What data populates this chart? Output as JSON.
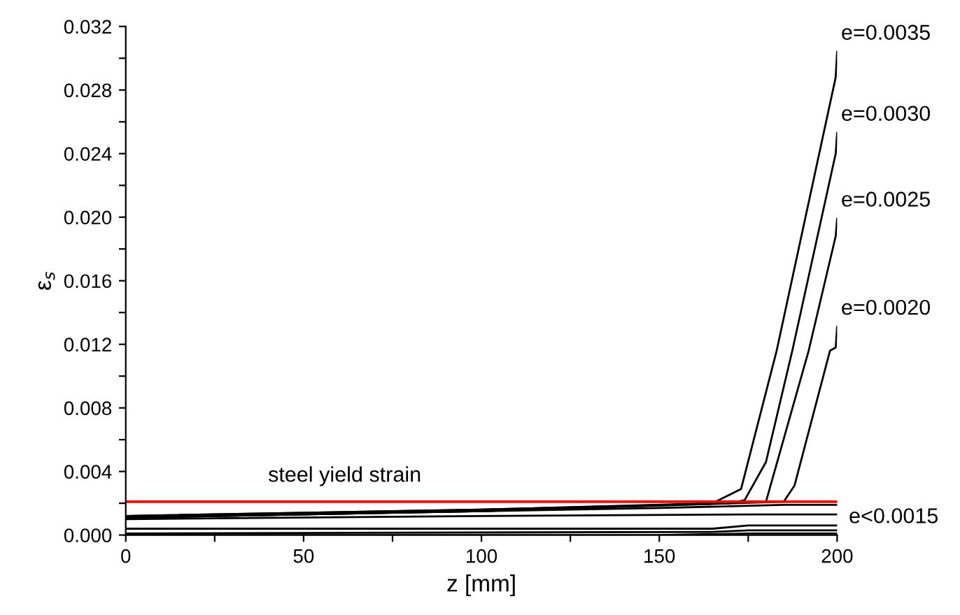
{
  "chart_data": {
    "type": "line",
    "xlabel": "z [mm]",
    "ylabel": "ε$_{s}$",
    "xlim": [
      0,
      200
    ],
    "xticks": [
      0,
      {
        "value": 25,
        "label": null
      },
      50,
      {
        "value": 75,
        "label": null
      },
      100,
      {
        "value": 125,
        "label": null
      },
      150,
      {
        "value": 175,
        "label": null
      },
      200
    ],
    "ylim": [
      0,
      0.032
    ],
    "yticks": [
      "0.000",
      {
        "value": 0.002,
        "label": null
      },
      {
        "value": 0.004,
        "label": "0.004"
      },
      {
        "value": 0.006,
        "label": null
      },
      {
        "value": 0.008,
        "label": "0.008"
      },
      {
        "value": 0.01,
        "label": null
      },
      {
        "value": 0.012,
        "label": "0.012"
      },
      {
        "value": 0.014,
        "label": null
      },
      {
        "value": 0.016,
        "label": "0.016"
      },
      {
        "value": 0.018,
        "label": null
      },
      {
        "value": 0.02,
        "label": "0.020"
      },
      {
        "value": 0.022,
        "label": null
      },
      {
        "value": 0.024,
        "label": "0.024"
      },
      {
        "value": 0.026,
        "label": null
      },
      {
        "value": 0.028,
        "label": "0.028"
      },
      {
        "value": 0.03,
        "label": null
      },
      {
        "value": 0.032,
        "label": "0.032"
      }
    ],
    "grid": false,
    "legend": false,
    "marker": "none",
    "line_style": "solid",
    "series": [
      {
        "name": "e=0.0035",
        "color": "#000000",
        "x": [
          0,
          100,
          165,
          173,
          183,
          199.6,
          200
        ],
        "values": [
          0.0012,
          0.0016,
          0.002,
          0.0029,
          0.0116,
          0.0288,
          0.0304
        ]
      },
      {
        "name": "e=0.0030",
        "color": "#000000",
        "x": [
          0,
          100,
          170,
          174,
          180,
          187.4,
          199.6,
          200
        ],
        "values": [
          0.0012,
          0.0016,
          0.002,
          0.0022,
          0.0046,
          0.0116,
          0.024,
          0.0253
        ]
      },
      {
        "name": "e=0.0025",
        "color": "#000000",
        "x": [
          0,
          100,
          180,
          192,
          199.6,
          200
        ],
        "values": [
          0.0011,
          0.0015,
          0.0021,
          0.0116,
          0.0188,
          0.0199
        ]
      },
      {
        "name": "e=0.0020",
        "color": "#000000",
        "x": [
          0,
          100,
          185,
          188,
          198,
          199.6,
          200
        ],
        "values": [
          0.0011,
          0.0015,
          0.0021,
          0.0031,
          0.0116,
          0.0118,
          0.0131
        ]
      },
      {
        "color": "#000000",
        "x": [
          0,
          150,
          185,
          200
        ],
        "values": [
          0.0011,
          0.0017,
          0.0019,
          0.0019
        ]
      },
      {
        "color": "#000000",
        "x": [
          0,
          100,
          175,
          200
        ],
        "values": [
          0.001,
          0.0012,
          0.0013,
          0.0013
        ]
      },
      {
        "color": "#000000",
        "x": [
          0,
          100,
          165,
          175,
          200
        ],
        "values": [
          0.0004,
          0.0004,
          0.0004,
          0.0006,
          0.0006
        ]
      },
      {
        "color": "#000000",
        "x": [
          0,
          165,
          175,
          200
        ],
        "values": [
          0.0001,
          0.0002,
          0.0003,
          0.0003
        ]
      },
      {
        "color": "#000000",
        "x": [
          0,
          150,
          175,
          200
        ],
        "values": [
          0.0,
          0.0,
          0.0001,
          0.0001
        ]
      }
    ],
    "ref_lines": [
      {
        "axis": "y",
        "value": 0.0021,
        "label": "steel yield strain",
        "color": "#ff0000",
        "line_style": "solid"
      }
    ],
    "annotations": [
      {
        "text": "e<0.0015",
        "x": 200,
        "y": 0.0011
      }
    ]
  }
}
